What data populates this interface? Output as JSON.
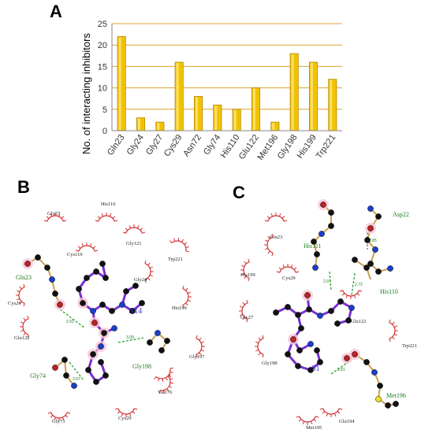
{
  "panels": {
    "a": "A",
    "b": "B",
    "c": "C"
  },
  "chart_data": {
    "type": "bar",
    "title": "",
    "xlabel": "",
    "ylabel": "No. of interacting inhibitors",
    "ylim": [
      0,
      25
    ],
    "yticks": [
      "0",
      "5",
      "10",
      "15",
      "20",
      "25"
    ],
    "grid": true,
    "categories": [
      "Gln23",
      "Gly24",
      "Gly27",
      "Cys29",
      "Asn72",
      "Gly74",
      "His110",
      "Glu122",
      "Met196",
      "Gly198",
      "His199",
      "Trp221"
    ],
    "values": [
      22,
      3,
      2,
      16,
      8,
      6,
      5,
      10,
      2,
      18,
      16,
      12
    ],
    "bar_color": "#f2c200",
    "grid_color": "#e0a030"
  },
  "diagram_b": {
    "ligand": "N14",
    "hbond_residues": [
      "Gln23",
      "Gly198",
      "Gly74"
    ],
    "distances": [
      "2.91",
      "3.09",
      "3.07"
    ],
    "contact_residues": [
      "Gly27",
      "His110",
      "Gly121",
      "Cys119",
      "Trp221",
      "Gly24",
      "Cys26",
      "His199",
      "Glu122",
      "Gly197",
      "Val176",
      "Gly73",
      "Cys29"
    ]
  },
  "diagram_c": {
    "ligand": "S1",
    "hbond_residues": [
      "Asp22",
      "His111",
      "His110",
      "Met196"
    ],
    "distances": [
      "2.85",
      "2.97",
      "2.72",
      "2.81"
    ],
    "contact_residues": [
      "Gln23",
      "His199",
      "Cys29",
      "Gly27",
      "Glu122",
      "Trp221",
      "Gly198",
      "Met195",
      "Glu194"
    ]
  }
}
